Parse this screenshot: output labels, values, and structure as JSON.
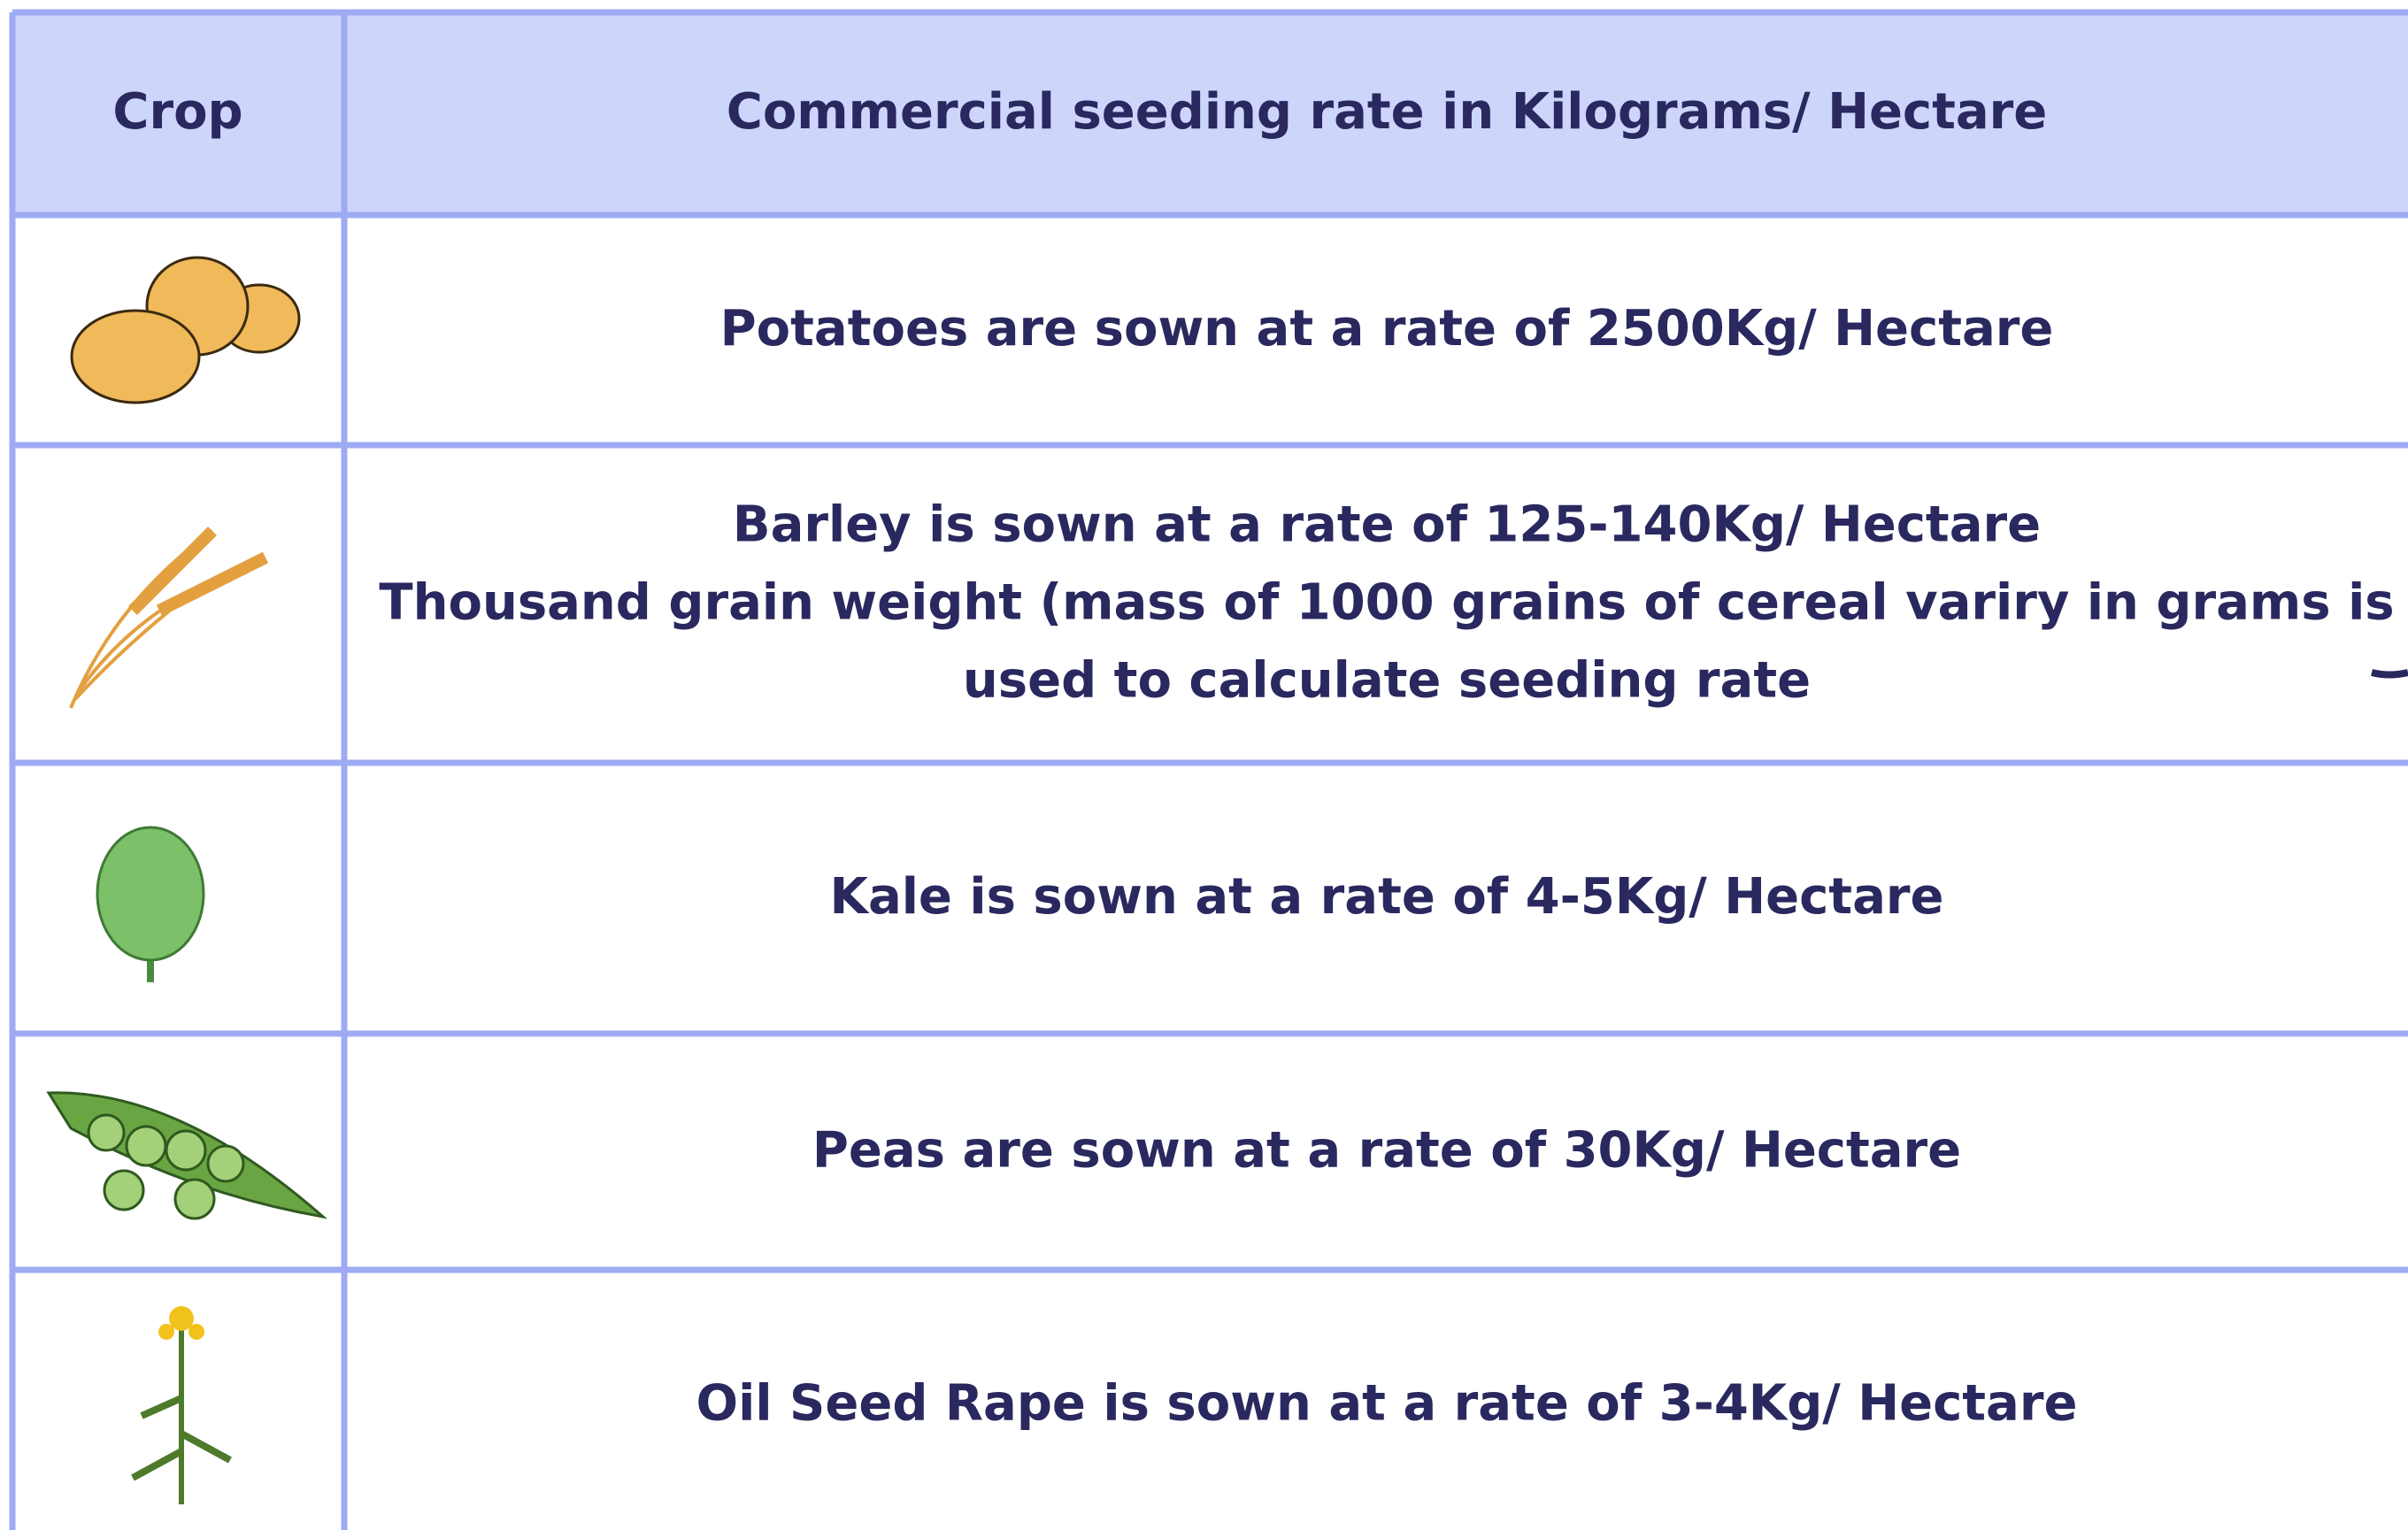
{
  "header": {
    "cells": [
      "Crop",
      "Commercial seeding rate in Kilograms/ Hectare"
    ]
  },
  "rows": [
    {
      "lines": [
        "Potatoes are sown at a rate of 2500Kg/ Hectare"
      ]
    },
    {
      "lines": [
        "Barley is sown at a rate of 125-140Kg/ Hectare",
        "Thousand grain weight (mass of 1000 grains of cereal variry in grams is",
        "used to calculate seeding rate"
      ]
    },
    {
      "lines": [
        "Kale is sown at a rate of 4-5Kg/ Hectare"
      ]
    },
    {
      "lines": [
        "Peas are sown at a rate of 30Kg/ Hectare"
      ]
    },
    {
      "lines": [
        "Oil Seed Rape is sown at a rate of 3-4Kg/ Hectare"
      ]
    }
  ]
}
